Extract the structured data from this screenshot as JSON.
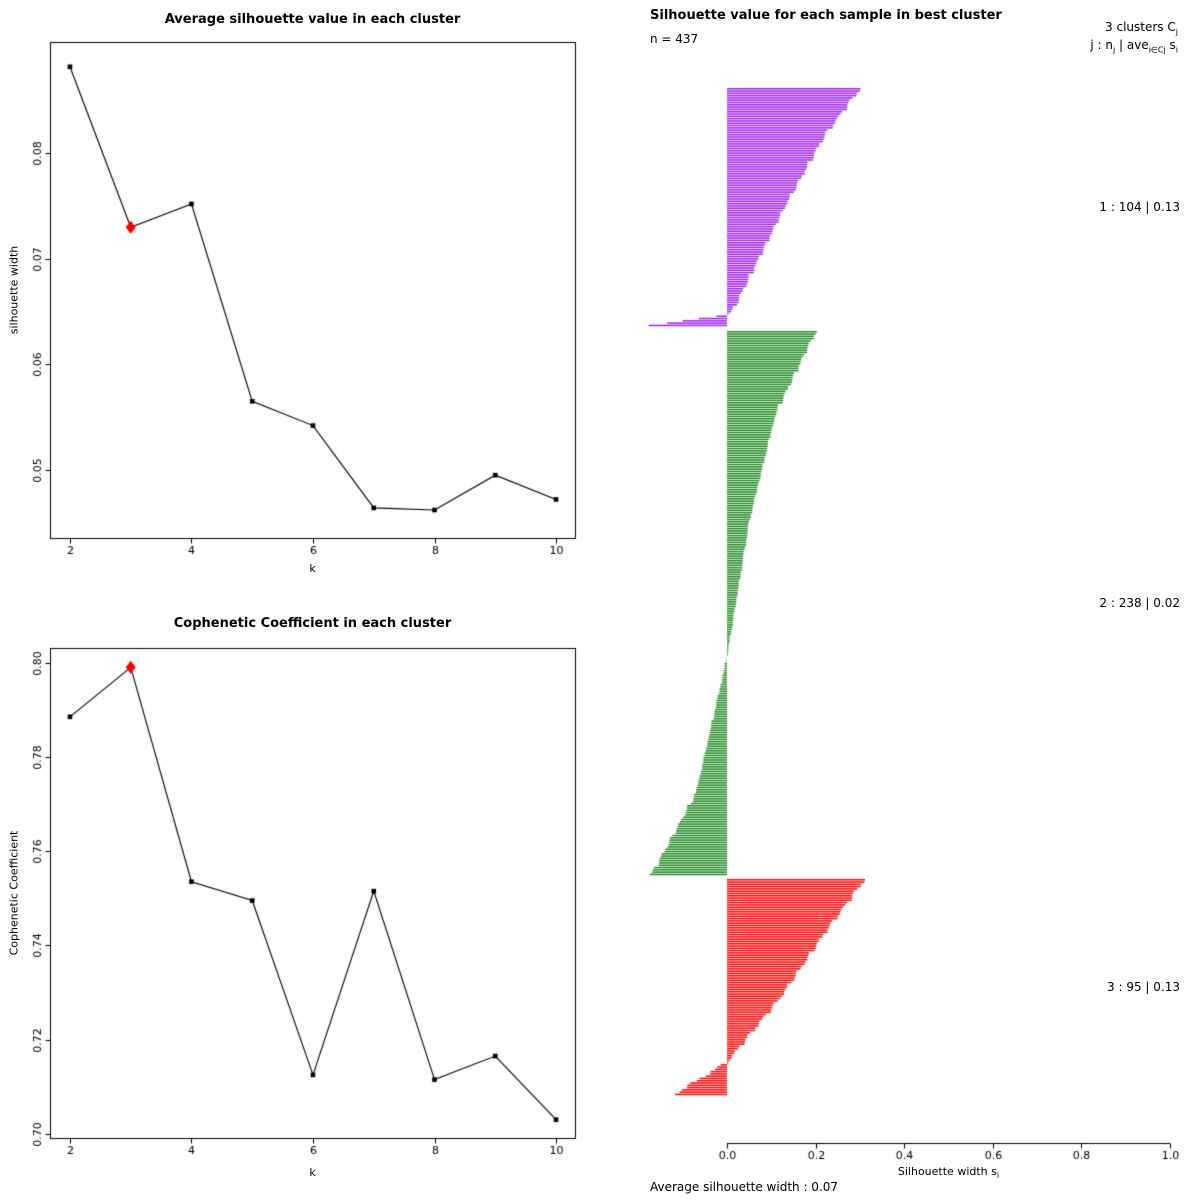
{
  "chart_data": [
    {
      "type": "line",
      "title": "Average silhouette value in each cluster",
      "xlabel": "k",
      "ylabel": "silhouette width",
      "x": [
        2,
        3,
        4,
        5,
        6,
        7,
        8,
        9,
        10
      ],
      "y": [
        0.0882,
        0.073,
        0.0752,
        0.0565,
        0.0542,
        0.0464,
        0.0462,
        0.0495,
        0.0472
      ],
      "xlim": [
        1.68,
        10.32
      ],
      "ylim": [
        0.0435,
        0.0905
      ],
      "xticks": [
        2,
        4,
        6,
        8,
        10
      ],
      "xtick_labels": [
        "2",
        "4",
        "6",
        "8",
        "10"
      ],
      "yticks": [
        0.05,
        0.06,
        0.07,
        0.08
      ],
      "ytick_labels": [
        "0.05",
        "0.06",
        "0.07",
        "0.08"
      ],
      "highlight_index": 1,
      "highlight_k": 3,
      "highlight_color": "#ff0000",
      "line_color": "#000000",
      "grid": false
    },
    {
      "type": "line",
      "title": "Cophenetic Coefficient in each cluster",
      "xlabel": "k",
      "ylabel": "Cophenetic Coefficient",
      "x": [
        2,
        3,
        4,
        5,
        6,
        7,
        8,
        9,
        10
      ],
      "y": [
        0.7885,
        0.799,
        0.7535,
        0.7495,
        0.7125,
        0.7515,
        0.7115,
        0.7165,
        0.703
      ],
      "xlim": [
        1.68,
        10.32
      ],
      "ylim": [
        0.699,
        0.803
      ],
      "xticks": [
        2,
        4,
        6,
        8,
        10
      ],
      "xtick_labels": [
        "2",
        "4",
        "6",
        "8",
        "10"
      ],
      "yticks": [
        0.7,
        0.72,
        0.74,
        0.76,
        0.78,
        0.8
      ],
      "ytick_labels": [
        "0.70",
        "0.72",
        "0.74",
        "0.76",
        "0.78",
        "0.80"
      ],
      "highlight_index": 1,
      "highlight_k": 3,
      "highlight_color": "#ff0000",
      "line_color": "#000000",
      "grid": false
    },
    {
      "type": "silhouette",
      "title": "Silhouette value for each sample in best cluster",
      "n_label": "n = 437",
      "n_total": 437,
      "k_clusters": 3,
      "average_silhouette_width": 0.07,
      "avg_label": "Average silhouette width :  0.07",
      "xlabel_main": "Silhouette width s",
      "xlabel_sub": "i",
      "xticks": [
        0,
        0.2,
        0.4,
        0.6,
        0.8,
        1.0
      ],
      "xtick_labels": [
        "0.0",
        "0.2",
        "0.4",
        "0.6",
        "0.8",
        "1.0"
      ],
      "xlim": [
        -0.19,
        1.0
      ],
      "header": {
        "line1_main": "3  clusters  C",
        "line1_sub": "j",
        "line2_p1": "j :  n",
        "line2_s1": "j",
        "line2_p2": " | ave",
        "line2_s2": "i∈Cj",
        "line2_p3": " s",
        "line2_s3": "i"
      },
      "clusters": [
        {
          "label": "1 :   104  |  0.13",
          "n": 104,
          "avg_width": 0.13,
          "color": "#a020f0",
          "profile_t": [
            0,
            0.2,
            0.5,
            0.8,
            0.95,
            1
          ],
          "profile_v": [
            0.3,
            0.22,
            0.13,
            0.05,
            0.01,
            -0.17
          ]
        },
        {
          "label": "2 :   238  |  0.02",
          "n": 238,
          "avg_width": 0.02,
          "color": "#228b22",
          "profile_t": [
            0,
            0.15,
            0.35,
            0.6,
            0.85,
            1
          ],
          "profile_v": [
            0.2,
            0.11,
            0.05,
            0.0,
            -0.07,
            -0.17
          ]
        },
        {
          "label": "3 :   95  |  0.13",
          "n": 95,
          "avg_width": 0.13,
          "color": "#ff0000",
          "profile_t": [
            0,
            0.25,
            0.55,
            0.85,
            1
          ],
          "profile_v": [
            0.31,
            0.22,
            0.12,
            0.0,
            -0.12
          ]
        }
      ]
    }
  ]
}
